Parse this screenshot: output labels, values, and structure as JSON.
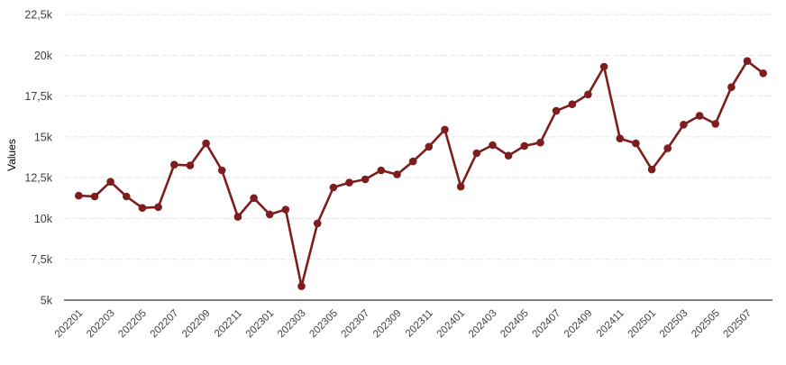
{
  "chart_data": {
    "type": "line",
    "title": "",
    "xlabel": "",
    "ylabel": "Values",
    "legend": "none",
    "grid": "horizontal-dashed",
    "ylim": [
      5000,
      22500
    ],
    "x": [
      "202201",
      "202202",
      "202203",
      "202204",
      "202205",
      "202206",
      "202207",
      "202208",
      "202209",
      "202210",
      "202211",
      "202212",
      "202301",
      "202302",
      "202303",
      "202304",
      "202305",
      "202306",
      "202307",
      "202308",
      "202309",
      "202310",
      "202311",
      "202312",
      "202401",
      "202402",
      "202403",
      "202404",
      "202405",
      "202406",
      "202407",
      "202408",
      "202409",
      "202410",
      "202411",
      "202412",
      "202501",
      "202502",
      "202503",
      "202504",
      "202505",
      "202506",
      "202507",
      "202508"
    ],
    "values": [
      11400,
      11350,
      12250,
      11350,
      10650,
      10700,
      13300,
      13250,
      14600,
      12950,
      10100,
      11250,
      10250,
      10550,
      5850,
      9700,
      11900,
      12200,
      12400,
      12950,
      12700,
      13500,
      14400,
      15450,
      11950,
      14000,
      14500,
      13850,
      14450,
      14650,
      16600,
      17000,
      17600,
      19300,
      14900,
      14600,
      13000,
      14300,
      15750,
      16300,
      15800,
      18050,
      19650,
      18900
    ],
    "x_tick_labels": [
      "202201",
      "202203",
      "202205",
      "202207",
      "202209",
      "202211",
      "202301",
      "202303",
      "202305",
      "202307",
      "202309",
      "202311",
      "202401",
      "202403",
      "202405",
      "202407",
      "202409",
      "202411",
      "202501",
      "202503",
      "202505",
      "202507"
    ],
    "y_ticks": [
      {
        "value": 5000,
        "label": "5k"
      },
      {
        "value": 7500,
        "label": "7,5k"
      },
      {
        "value": 10000,
        "label": "10k"
      },
      {
        "value": 12500,
        "label": "12,5k"
      },
      {
        "value": 15000,
        "label": "15k"
      },
      {
        "value": 17500,
        "label": "17,5k"
      },
      {
        "value": 20000,
        "label": "20k"
      },
      {
        "value": 22500,
        "label": "22,5k"
      }
    ],
    "colors": {
      "series": "#7d1d1d",
      "gridline": "#e1e1e1",
      "axis_line": "#333333",
      "tick_text": "#404040",
      "axis_title_text": "#757575",
      "background": "#ffffff"
    }
  }
}
